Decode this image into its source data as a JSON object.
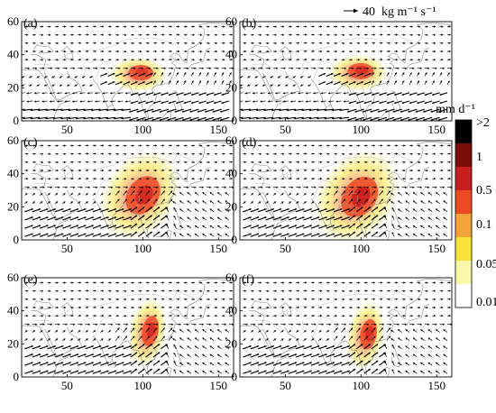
{
  "figure": {
    "panels": [
      {
        "label": "(a)",
        "plume": {
          "lon": 97,
          "lat": 28,
          "intensity": 0.55,
          "shape": "flat"
        }
      },
      {
        "label": "(b)",
        "plume": {
          "lon": 98,
          "lat": 29,
          "intensity": 0.7,
          "shape": "flat"
        }
      },
      {
        "label": "(c)",
        "plume": {
          "lon": 98,
          "lat": 27,
          "intensity": 0.8,
          "shape": "tall"
        }
      },
      {
        "label": "(d)",
        "plume": {
          "lon": 97,
          "lat": 26,
          "intensity": 1.0,
          "shape": "tall"
        }
      },
      {
        "label": "(e)",
        "plume": {
          "lon": 103,
          "lat": 27,
          "intensity": 0.75,
          "shape": "narrow"
        }
      },
      {
        "label": "(f)",
        "plume": {
          "lon": 103,
          "lat": 25,
          "intensity": 0.75,
          "shape": "narrow"
        }
      }
    ],
    "vector_key": {
      "magnitude": "40",
      "unit": "kg m⁻¹ s⁻¹"
    },
    "colorbar": {
      "unit": "mm d⁻¹",
      "labels": [
        ">2",
        "1",
        "0.5",
        "0.1",
        "0.05",
        "0.01"
      ],
      "colors": [
        "#000000",
        "#7a0c0c",
        "#c81e1e",
        "#ee4a22",
        "#f4a23a",
        "#f8e23a",
        "#fbf7a8",
        "#ffffff"
      ]
    },
    "axes": {
      "lon_range": [
        20,
        160
      ],
      "lat_range": [
        0,
        60
      ],
      "lon_ticks": [
        "50",
        "100",
        "150"
      ],
      "lat_ticks": [
        "0",
        "20",
        "40",
        "60"
      ]
    }
  }
}
